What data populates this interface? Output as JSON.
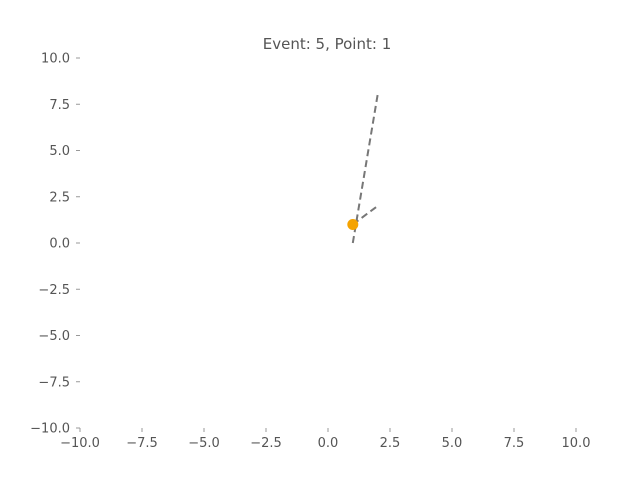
{
  "chart_data": {
    "type": "line",
    "title": "Event: 5, Point: 1",
    "xlim": [
      -10.0,
      10.0
    ],
    "ylim": [
      -10.0,
      10.0
    ],
    "xticks": [
      -10.0,
      -7.5,
      -5.0,
      -2.5,
      0.0,
      2.5,
      5.0,
      7.5,
      10.0
    ],
    "yticks": [
      -10.0,
      -7.5,
      -5.0,
      -2.5,
      0.0,
      2.5,
      5.0,
      7.5,
      10.0
    ],
    "xtick_labels": [
      "−10.0",
      "−7.5",
      "−5.0",
      "−2.5",
      "0.0",
      "2.5",
      "5.0",
      "7.5",
      "10.0"
    ],
    "ytick_labels": [
      "−10.0",
      "−7.5",
      "−5.0",
      "−2.5",
      "0.0",
      "2.5",
      "5.0",
      "7.5",
      "10.0"
    ],
    "grid": false,
    "series": [
      {
        "style": "dashed",
        "color": "#777777",
        "x": [
          1.0,
          2.0
        ],
        "y": [
          0.0,
          8.0
        ]
      },
      {
        "style": "dashed",
        "color": "#777777",
        "x": [
          1.0,
          2.0
        ],
        "y": [
          1.0,
          2.0
        ]
      }
    ],
    "points": [
      {
        "x": 1.0,
        "y": 1.0,
        "color": "#f5a300"
      }
    ]
  }
}
